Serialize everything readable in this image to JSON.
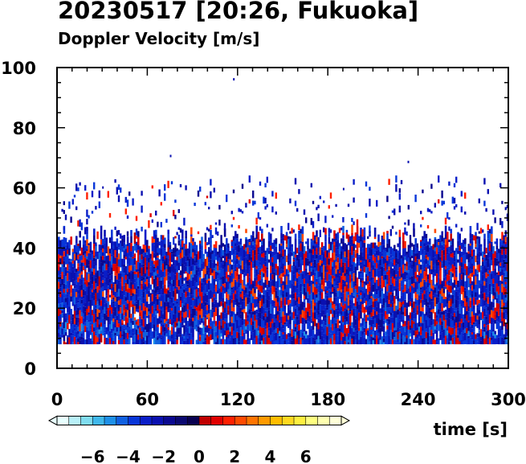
{
  "title": "20230517 [20:26, Fukuoka]",
  "subtitle": "Doppler Velocity [m/s]",
  "chart_data": {
    "type": "heatmap",
    "title": "20230517 [20:26, Fukuoka]",
    "subtitle": "Doppler Velocity [m/s]",
    "xlabel": "time [s]",
    "ylabel": "",
    "xlim": [
      0,
      300
    ],
    "ylim": [
      0,
      100
    ],
    "xticks": [
      0,
      60,
      120,
      180,
      240,
      300
    ],
    "yticks": [
      0,
      20,
      40,
      60,
      80,
      100
    ],
    "data_range_y": [
      8,
      62
    ],
    "dense_top_y": 42,
    "colorbar": {
      "ticks": [
        -6,
        -4,
        -2,
        0,
        2,
        4,
        6
      ],
      "vmin": -8,
      "vmax": 8,
      "extend": "both",
      "colors_negative": [
        "#e8ffff",
        "#b8f0f8",
        "#80dcf0",
        "#40b8ec",
        "#1e90e8",
        "#1060e0",
        "#0836d8",
        "#0a1ec8",
        "#0a10b0",
        "#0a0890",
        "#0a0870",
        "#080050"
      ],
      "colors_positive": [
        "#c00000",
        "#e00000",
        "#ff2000",
        "#ff4a00",
        "#ff7400",
        "#ff9a00",
        "#ffbc00",
        "#ffd820",
        "#fff040",
        "#ffff80",
        "#ffffb0",
        "#ffffd8"
      ]
    },
    "profile_velocity_by_height": [
      {
        "height_range": [
          8,
          25
        ],
        "typical_velocity": -2.5
      },
      {
        "height_range": [
          25,
          42
        ],
        "typical_velocity": -1.5
      },
      {
        "height_range": [
          42,
          62
        ],
        "typical_velocity": -2
      }
    ]
  }
}
